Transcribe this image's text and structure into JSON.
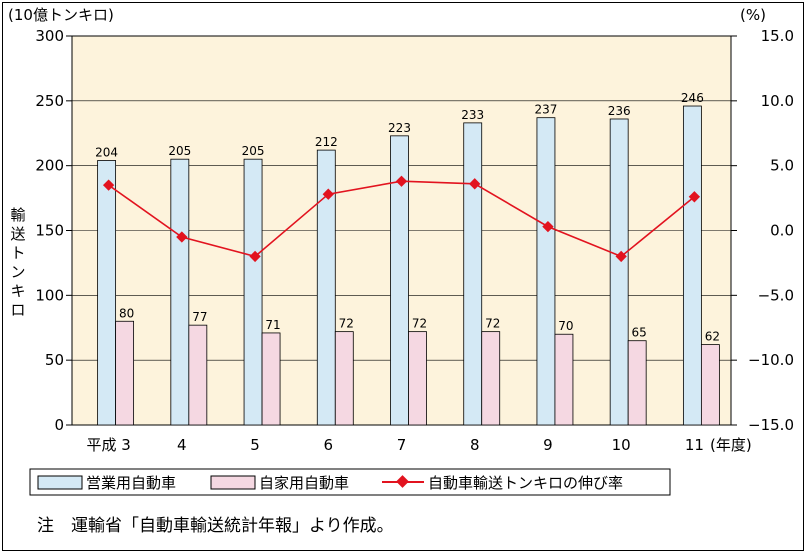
{
  "chart_data": {
    "type": "bar",
    "categories": [
      "平成 3",
      "4",
      "5",
      "6",
      "7",
      "8",
      "9",
      "10",
      "11"
    ],
    "series": [
      {
        "name": "営業用自動車",
        "type": "bar",
        "axis": "left",
        "color": "#d4e9f5",
        "values": [
          204,
          205,
          205,
          212,
          223,
          233,
          237,
          236,
          246
        ]
      },
      {
        "name": "自家用自動車",
        "type": "bar",
        "axis": "left",
        "color": "#f5d8e2",
        "values": [
          80,
          77,
          71,
          72,
          72,
          72,
          70,
          65,
          62
        ]
      },
      {
        "name": "自動車輸送トンキロの伸び率",
        "type": "line",
        "axis": "right",
        "color": "#e2131f",
        "values": [
          3.5,
          -0.5,
          -2.0,
          2.8,
          3.8,
          3.6,
          0.3,
          -2.0,
          2.6
        ]
      }
    ],
    "y_left": {
      "label": "輸送トンキロ",
      "unit": "(10億トンキロ)",
      "min": 0,
      "max": 300,
      "ticks": [
        "0",
        "50",
        "100",
        "150",
        "200",
        "250",
        "300"
      ]
    },
    "y_right": {
      "unit": "(%)",
      "min": -15.0,
      "max": 15.0,
      "ticks": [
        "−15.0",
        "−10.0",
        "−5.0",
        "0.0",
        "5.0",
        "10.0",
        "15.0"
      ]
    },
    "x_unit": "(年度)",
    "plot_background": "#fdf3dc",
    "note": "注　運輸省「自動車輸送統計年報」より作成。"
  }
}
